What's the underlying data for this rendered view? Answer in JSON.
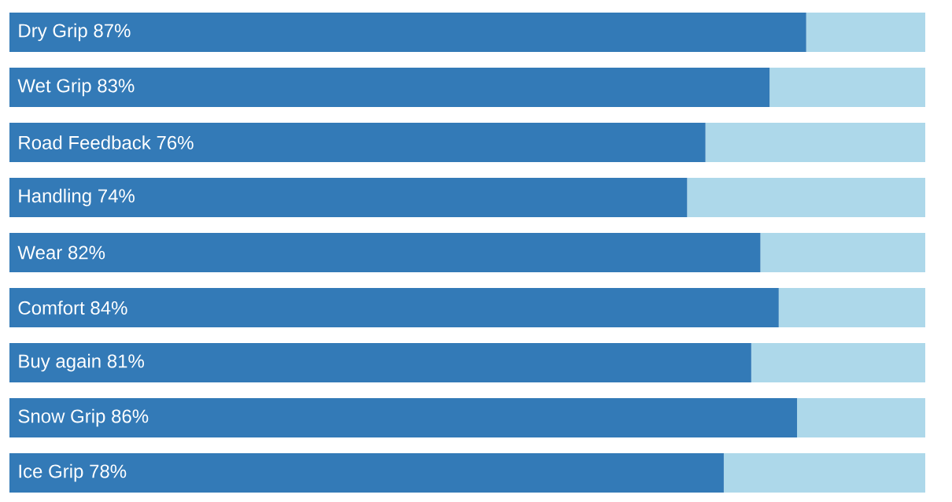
{
  "chart_data": {
    "type": "bar",
    "orientation": "horizontal",
    "stacked": true,
    "categories": [
      "Dry Grip",
      "Wet Grip",
      "Road Feedback",
      "Handling",
      "Wear",
      "Comfort",
      "Buy again",
      "Snow Grip",
      "Ice Grip"
    ],
    "series": [
      {
        "color": "#337ab7",
        "values": [
          87,
          83,
          76,
          74,
          82,
          84,
          81,
          86,
          78
        ],
        "value_labels": [
          "87%",
          "83%",
          "76%",
          "74%",
          "82%",
          "84%",
          "81%",
          "86%",
          "78%"
        ]
      },
      {
        "color": "#add8ea",
        "values": [
          13,
          17,
          24,
          26,
          18,
          16,
          19,
          14,
          22
        ]
      }
    ],
    "xlim": [
      0,
      100
    ],
    "tick_labels": false
  }
}
